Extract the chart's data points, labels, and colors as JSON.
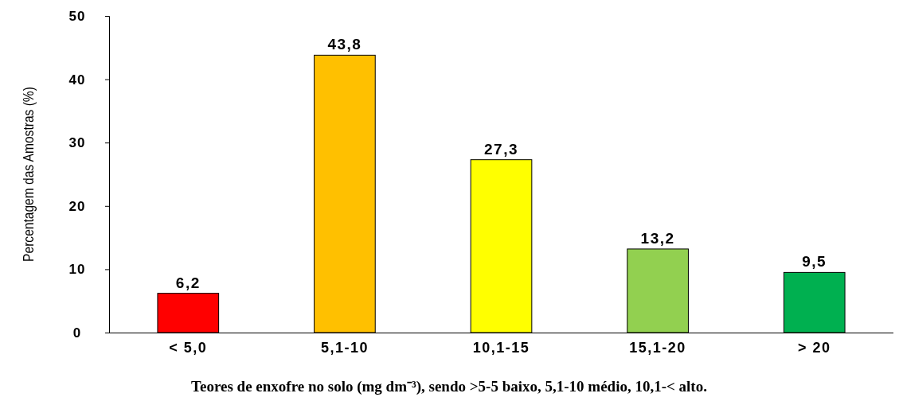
{
  "chart_data": {
    "type": "bar",
    "xlabel": "Teores de enxofre no solo (mg dm⁻³), sendo >5-5 baixo, 5,1-10 médio, 10,1-< alto.",
    "ylabel": "Percentagem das Amostras (%)",
    "categories": [
      "< 5,0",
      "5,1-10",
      "10,1-15",
      "15,1-20",
      "> 20"
    ],
    "values": [
      6.2,
      43.8,
      27.3,
      13.2,
      9.5
    ],
    "colors": [
      "#ff0000",
      "#ffc000",
      "#ffff00",
      "#92d050",
      "#00b050"
    ],
    "value_labels": [
      "6,2",
      "43,8",
      "27,3",
      "13,2",
      "9,5"
    ],
    "ylim": [
      0,
      50
    ],
    "yticks": [
      0,
      10,
      20,
      30,
      40,
      50
    ]
  }
}
